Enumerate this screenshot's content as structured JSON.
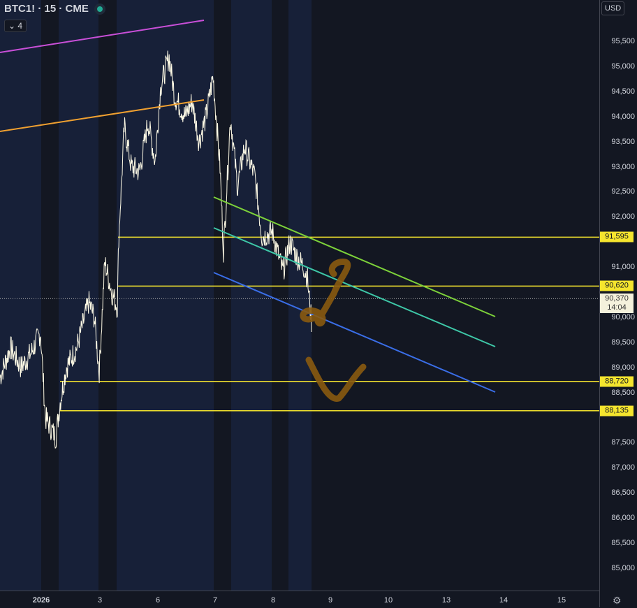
{
  "header": {
    "symbol_title": "BTC1! · 15 · CME",
    "status_color": "#22ab94",
    "indicators_count": "4"
  },
  "price_axis": {
    "currency": "USD",
    "ticks": [
      "95,500",
      "95,000",
      "94,500",
      "94,000",
      "93,500",
      "93,000",
      "92,500",
      "92,000",
      "91,000",
      "90,000",
      "89,500",
      "89,000",
      "88,500",
      "87,500",
      "87,000",
      "86,500",
      "86,000",
      "85,500",
      "85,000"
    ],
    "tick_values": [
      95500,
      95000,
      94500,
      94000,
      93500,
      93000,
      92500,
      92000,
      91000,
      90000,
      89500,
      89000,
      88500,
      87500,
      87000,
      86500,
      86000,
      85500,
      85000
    ],
    "levels": [
      {
        "label": "91,595",
        "value": 91595
      },
      {
        "label": "90,620",
        "value": 90620
      },
      {
        "label": "88,720",
        "value": 88720
      },
      {
        "label": "88,135",
        "value": 88135
      }
    ],
    "last_price": {
      "label": "90,370",
      "value": 90370,
      "countdown": "14:04"
    }
  },
  "time_axis": {
    "labels": [
      "2026",
      "3",
      "6",
      "7",
      "8",
      "9",
      "10",
      "13",
      "14",
      "15"
    ]
  },
  "colors": {
    "candles": "#fffbe6",
    "levels": "#f5e52e",
    "magenta": "#c94fd8",
    "orange": "#f0a030",
    "green": "#7dd23a",
    "teal": "#3ec8a8",
    "blue": "#3a6ee8",
    "drawing": "#8a5a10"
  },
  "chart_data": {
    "type": "line",
    "series": [
      {
        "values_approx": [
          [
            0,
            88800
          ],
          [
            1,
            89400
          ],
          [
            2,
            89000
          ],
          [
            3,
            89300
          ],
          [
            4,
            89700
          ]
        ]
      }
    ]
  }
}
